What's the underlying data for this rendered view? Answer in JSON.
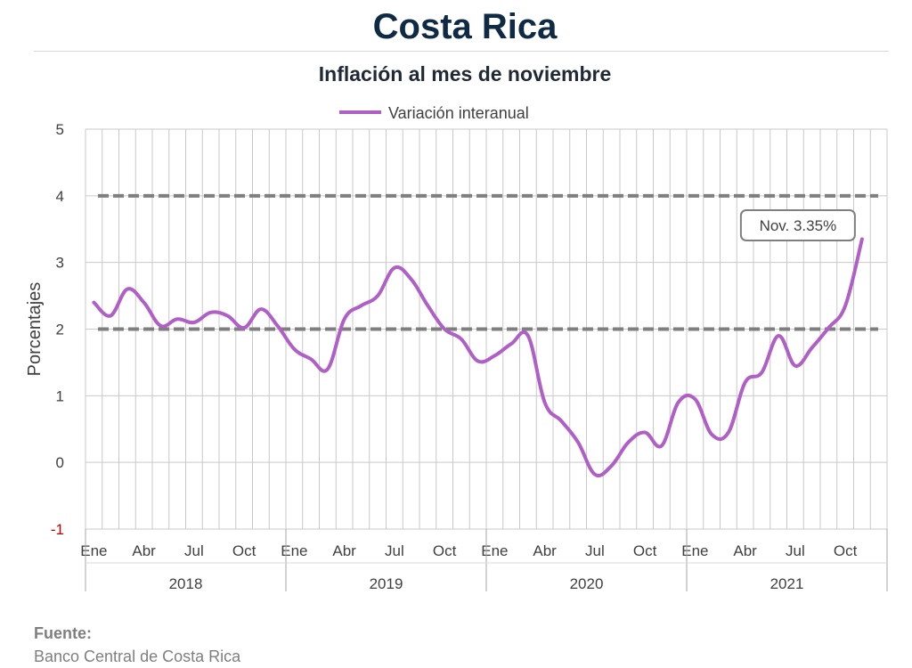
{
  "header": {
    "title": "Costa Rica",
    "subtitle": "Inflación al mes de noviembre"
  },
  "source": {
    "label": "Fuente:",
    "value": "Banco Central de Costa Rica"
  },
  "colors": {
    "series": "#b05fc6",
    "reference": "#7f7f7f",
    "grid": "#c9c9c9",
    "negative_tick": "#c00000"
  },
  "chart_data": {
    "type": "line",
    "title": "Inflación al mes de noviembre",
    "ylabel": "Porcentajes",
    "xlabel": "",
    "ylim": [
      -1,
      5
    ],
    "yticks": [
      -1,
      0,
      1,
      2,
      3,
      4,
      5
    ],
    "grid": true,
    "legend_position": "top-center",
    "month_tick_labels": [
      "Ene",
      "Abr",
      "Jul",
      "Oct"
    ],
    "years": [
      "2018",
      "2019",
      "2020",
      "2021"
    ],
    "reference_lines": [
      2,
      4
    ],
    "annotation": {
      "text": "Nov. 3.35%",
      "x": "2021-11",
      "y": 3.35
    },
    "series": [
      {
        "name": "Variación interanual",
        "x": [
          "2018-01",
          "2018-02",
          "2018-03",
          "2018-04",
          "2018-05",
          "2018-06",
          "2018-07",
          "2018-08",
          "2018-09",
          "2018-10",
          "2018-11",
          "2018-12",
          "2019-01",
          "2019-02",
          "2019-03",
          "2019-04",
          "2019-05",
          "2019-06",
          "2019-07",
          "2019-08",
          "2019-09",
          "2019-10",
          "2019-11",
          "2019-12",
          "2020-01",
          "2020-02",
          "2020-03",
          "2020-04",
          "2020-05",
          "2020-06",
          "2020-07",
          "2020-08",
          "2020-09",
          "2020-10",
          "2020-11",
          "2020-12",
          "2021-01",
          "2021-02",
          "2021-03",
          "2021-04",
          "2021-05",
          "2021-06",
          "2021-07",
          "2021-08",
          "2021-09",
          "2021-10",
          "2021-11"
        ],
        "values": [
          2.4,
          2.2,
          2.6,
          2.4,
          2.05,
          2.15,
          2.1,
          2.25,
          2.2,
          2.02,
          2.3,
          2.05,
          1.7,
          1.55,
          1.4,
          2.15,
          2.35,
          2.5,
          2.92,
          2.75,
          2.35,
          2.0,
          1.85,
          1.52,
          1.6,
          1.78,
          1.9,
          0.9,
          0.62,
          0.3,
          -0.18,
          -0.05,
          0.3,
          0.45,
          0.25,
          0.9,
          0.95,
          0.42,
          0.45,
          1.2,
          1.35,
          1.9,
          1.45,
          1.72,
          2.02,
          2.35,
          3.35
        ]
      }
    ]
  }
}
